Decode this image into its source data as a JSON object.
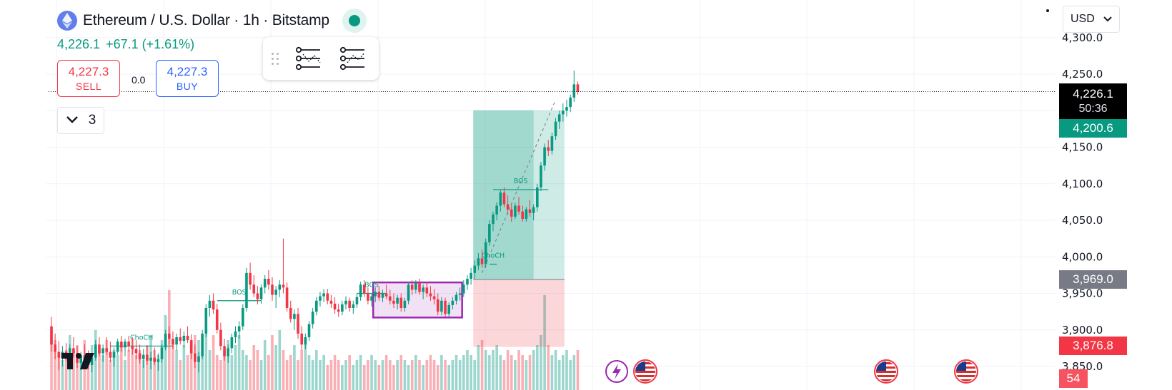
{
  "header": {
    "title": "Ethereum / U.S. Dollar · 1h · Bitstamp",
    "price": "4,226.1",
    "change": "+67.1 (+1.61%)",
    "colors": {
      "up": "#089981",
      "down": "#f23645",
      "accent": "#2962ff"
    }
  },
  "trade": {
    "sell_price": "4,227.3",
    "sell_label": "SELL",
    "spread": "0.0",
    "buy_price": "4,227.3",
    "buy_label": "BUY"
  },
  "indicators": {
    "count": "3"
  },
  "currency": {
    "selected": "USD"
  },
  "axis_tags": {
    "current_price": "4,226.1",
    "countdown": "50:36",
    "target": "4,200.6",
    "entry": "3,969.0",
    "stop": "3,876.8",
    "volume": "54"
  },
  "icons": [
    "ethereum-icon",
    "market-open-icon",
    "drag-handle-icon",
    "indicator-settings-icon",
    "indicator-settings-alt-icon",
    "chevron-down-icon",
    "tradingview-logo",
    "lightning-event-icon",
    "us-flag-icon"
  ],
  "chart_data": {
    "type": "candlestick",
    "title": "Ethereum / U.S. Dollar · 1h · Bitstamp",
    "ylim": [
      3850,
      4300
    ],
    "y_ticks": [
      "3,850.0",
      "3,900.0",
      "3,950.0",
      "4,000.0",
      "4,050.0",
      "4,100.0",
      "4,150.0",
      "4,200.0",
      "4,250.0",
      "4,300.0"
    ],
    "y_tick_values": [
      3850,
      3900,
      3950,
      4000,
      4050,
      4100,
      4150,
      4200,
      4250,
      4300
    ],
    "last_price": 4226.1,
    "candles": [
      [
        3905,
        3918,
        3870,
        3880
      ],
      [
        3880,
        3895,
        3860,
        3870
      ],
      [
        3870,
        3885,
        3845,
        3862
      ],
      [
        3862,
        3878,
        3850,
        3870
      ],
      [
        3870,
        3882,
        3858,
        3865
      ],
      [
        3865,
        3880,
        3852,
        3875
      ],
      [
        3875,
        3890,
        3862,
        3868
      ],
      [
        3868,
        3878,
        3848,
        3855
      ],
      [
        3855,
        3870,
        3845,
        3865
      ],
      [
        3865,
        3880,
        3856,
        3860
      ],
      [
        3860,
        3872,
        3846,
        3852
      ],
      [
        3852,
        3868,
        3842,
        3862
      ],
      [
        3862,
        3886,
        3858,
        3880
      ],
      [
        3880,
        3890,
        3864,
        3868
      ],
      [
        3868,
        3880,
        3856,
        3875
      ],
      [
        3875,
        3890,
        3866,
        3870
      ],
      [
        3870,
        3884,
        3856,
        3862
      ],
      [
        3862,
        3876,
        3850,
        3870
      ],
      [
        3870,
        3888,
        3866,
        3884
      ],
      [
        3884,
        3892,
        3870,
        3876
      ],
      [
        3876,
        3888,
        3864,
        3884
      ],
      [
        3884,
        3892,
        3870,
        3878
      ],
      [
        3878,
        3890,
        3866,
        3874
      ],
      [
        3874,
        3886,
        3860,
        3868
      ],
      [
        3868,
        3880,
        3854,
        3860
      ],
      [
        3860,
        3874,
        3848,
        3866
      ],
      [
        3866,
        3878,
        3852,
        3858
      ],
      [
        3858,
        3870,
        3846,
        3862
      ],
      [
        3862,
        3876,
        3852,
        3856
      ],
      [
        3856,
        3868,
        3844,
        3860
      ],
      [
        3860,
        3880,
        3855,
        3876
      ],
      [
        3876,
        3900,
        3872,
        3895
      ],
      [
        3895,
        3905,
        3880,
        3888
      ],
      [
        3888,
        3898,
        3874,
        3880
      ],
      [
        3880,
        3895,
        3872,
        3890
      ],
      [
        3890,
        3902,
        3880,
        3885
      ],
      [
        3885,
        3898,
        3876,
        3892
      ],
      [
        3892,
        3905,
        3882,
        3886
      ],
      [
        3886,
        3894,
        3860,
        3868
      ],
      [
        3868,
        3880,
        3848,
        3856
      ],
      [
        3856,
        3870,
        3842,
        3864
      ],
      [
        3864,
        3900,
        3860,
        3895
      ],
      [
        3895,
        3935,
        3890,
        3930
      ],
      [
        3930,
        3948,
        3918,
        3940
      ],
      [
        3940,
        3950,
        3922,
        3928
      ],
      [
        3928,
        3936,
        3895,
        3900
      ],
      [
        3900,
        3910,
        3872,
        3878
      ],
      [
        3878,
        3888,
        3858,
        3864
      ],
      [
        3864,
        3880,
        3855,
        3875
      ],
      [
        3875,
        3895,
        3868,
        3890
      ],
      [
        3890,
        3905,
        3882,
        3898
      ],
      [
        3898,
        3912,
        3888,
        3905
      ],
      [
        3905,
        3935,
        3900,
        3930
      ],
      [
        3930,
        3985,
        3925,
        3978
      ],
      [
        3978,
        3992,
        3955,
        3962
      ],
      [
        3962,
        3975,
        3945,
        3950
      ],
      [
        3950,
        3960,
        3935,
        3942
      ],
      [
        3942,
        3962,
        3936,
        3958
      ],
      [
        3958,
        3975,
        3950,
        3970
      ],
      [
        3970,
        3982,
        3955,
        3962
      ],
      [
        3962,
        3972,
        3940,
        3948
      ],
      [
        3948,
        3960,
        3930,
        3955
      ],
      [
        3955,
        3968,
        3945,
        3962
      ],
      [
        3962,
        4025,
        3950,
        3958
      ],
      [
        3958,
        3965,
        3925,
        3930
      ],
      [
        3930,
        3940,
        3910,
        3915
      ],
      [
        3915,
        3928,
        3900,
        3922
      ],
      [
        3922,
        3930,
        3888,
        3895
      ],
      [
        3895,
        3905,
        3872,
        3880
      ],
      [
        3880,
        3895,
        3874,
        3890
      ],
      [
        3890,
        3912,
        3885,
        3908
      ],
      [
        3908,
        3930,
        3902,
        3925
      ],
      [
        3925,
        3945,
        3920,
        3940
      ],
      [
        3940,
        3952,
        3932,
        3946
      ],
      [
        3946,
        3956,
        3938,
        3950
      ],
      [
        3950,
        3956,
        3935,
        3940
      ],
      [
        3940,
        3948,
        3930,
        3936
      ],
      [
        3936,
        3945,
        3922,
        3928
      ],
      [
        3928,
        3936,
        3918,
        3925
      ],
      [
        3925,
        3940,
        3920,
        3935
      ],
      [
        3935,
        3946,
        3928,
        3940
      ],
      [
        3940,
        3944,
        3925,
        3930
      ],
      [
        3930,
        3940,
        3922,
        3935
      ],
      [
        3935,
        3950,
        3930,
        3945
      ],
      [
        3945,
        3966,
        3940,
        3962
      ],
      [
        3962,
        3968,
        3945,
        3950
      ],
      [
        3950,
        3958,
        3935,
        3940
      ],
      [
        3940,
        3950,
        3932,
        3946
      ],
      [
        3946,
        3958,
        3938,
        3952
      ],
      [
        3952,
        3960,
        3940,
        3944
      ],
      [
        3944,
        3955,
        3938,
        3950
      ],
      [
        3950,
        3962,
        3942,
        3946
      ],
      [
        3946,
        3955,
        3935,
        3940
      ],
      [
        3940,
        3950,
        3930,
        3936
      ],
      [
        3936,
        3948,
        3928,
        3944
      ],
      [
        3944,
        3950,
        3925,
        3930
      ],
      [
        3930,
        3944,
        3925,
        3940
      ],
      [
        3940,
        3966,
        3935,
        3962
      ],
      [
        3962,
        3968,
        3948,
        3955
      ],
      [
        3955,
        3968,
        3950,
        3964
      ],
      [
        3964,
        3970,
        3948,
        3952
      ],
      [
        3952,
        3962,
        3942,
        3958
      ],
      [
        3958,
        3966,
        3945,
        3950
      ],
      [
        3950,
        3960,
        3940,
        3946
      ],
      [
        3946,
        3956,
        3935,
        3942
      ],
      [
        3942,
        3950,
        3920,
        3925
      ],
      [
        3925,
        3945,
        3920,
        3940
      ],
      [
        3940,
        3944,
        3918,
        3922
      ],
      [
        3922,
        3938,
        3918,
        3934
      ],
      [
        3934,
        3945,
        3928,
        3940
      ],
      [
        3940,
        3952,
        3935,
        3948
      ],
      [
        3948,
        3958,
        3940,
        3950
      ],
      [
        3950,
        3968,
        3945,
        3962
      ],
      [
        3962,
        3975,
        3955,
        3970
      ],
      [
        3970,
        3985,
        3962,
        3978
      ],
      [
        3978,
        3995,
        3970,
        3988
      ],
      [
        3988,
        4005,
        3982,
        3998
      ],
      [
        3998,
        4010,
        3985,
        3990
      ],
      [
        3990,
        4025,
        3985,
        4020
      ],
      [
        4020,
        4050,
        4015,
        4045
      ],
      [
        4045,
        4062,
        4035,
        4058
      ],
      [
        4058,
        4075,
        4050,
        4070
      ],
      [
        4070,
        4092,
        4062,
        4088
      ],
      [
        4088,
        4095,
        4068,
        4072
      ],
      [
        4072,
        4084,
        4058,
        4065
      ],
      [
        4065,
        4072,
        4048,
        4055
      ],
      [
        4055,
        4074,
        4052,
        4070
      ],
      [
        4070,
        4082,
        4058,
        4062
      ],
      [
        4062,
        4070,
        4048,
        4052
      ],
      [
        4052,
        4068,
        4048,
        4065
      ],
      [
        4065,
        4078,
        4055,
        4060
      ],
      [
        4060,
        4072,
        4050,
        4068
      ],
      [
        4068,
        4100,
        4062,
        4095
      ],
      [
        4095,
        4130,
        4090,
        4125
      ],
      [
        4125,
        4155,
        4118,
        4150
      ],
      [
        4150,
        4160,
        4138,
        4145
      ],
      [
        4145,
        4170,
        4140,
        4165
      ],
      [
        4165,
        4190,
        4160,
        4185
      ],
      [
        4185,
        4200,
        4175,
        4195
      ],
      [
        4195,
        4210,
        4185,
        4200
      ],
      [
        4200,
        4215,
        4192,
        4205
      ],
      [
        4205,
        4222,
        4198,
        4218
      ],
      [
        4218,
        4255,
        4212,
        4236
      ],
      [
        4236,
        4240,
        4222,
        4226
      ]
    ],
    "volumes": [
      0.6,
      0.5,
      0.35,
      0.3,
      0.4,
      0.55,
      0.4,
      0.45,
      0.35,
      0.5,
      0.3,
      0.45,
      0.6,
      0.4,
      0.35,
      0.5,
      0.3,
      0.4,
      0.35,
      0.45,
      0.3,
      0.4,
      0.5,
      0.35,
      0.4,
      0.3,
      0.45,
      0.55,
      0.4,
      0.35,
      0.5,
      0.75,
      1.0,
      0.5,
      0.4,
      0.3,
      0.45,
      0.35,
      0.4,
      0.55,
      0.5,
      0.45,
      0.6,
      0.4,
      0.55,
      0.35,
      0.3,
      0.4,
      0.5,
      0.35,
      0.45,
      0.55,
      0.4,
      0.35,
      0.3,
      0.45,
      0.4,
      0.3,
      0.5,
      0.35,
      0.55,
      0.45,
      0.6,
      0.4,
      0.3,
      0.35,
      0.45,
      0.3,
      0.4,
      0.5,
      0.35,
      0.3,
      0.4,
      0.3,
      0.35,
      0.25,
      0.3,
      0.35,
      0.3,
      0.25,
      0.3,
      0.35,
      0.25,
      0.3,
      0.35,
      0.25,
      0.3,
      0.35,
      0.3,
      0.25,
      0.3,
      0.35,
      0.3,
      0.25,
      0.3,
      0.35,
      0.3,
      0.25,
      0.3,
      0.35,
      0.3,
      0.25,
      0.3,
      0.35,
      0.3,
      0.25,
      0.35,
      0.3,
      0.25,
      0.3,
      0.35,
      0.3,
      0.35,
      0.4,
      0.35,
      0.3,
      0.45,
      0.5,
      0.4,
      0.35,
      0.4,
      0.45,
      0.35,
      0.3,
      0.4,
      0.35,
      0.3,
      0.4,
      0.35,
      0.3,
      0.35,
      0.4,
      0.45,
      0.55,
      0.95,
      0.45,
      0.35,
      0.4,
      0.3,
      0.35,
      0.4,
      0.3,
      0.35,
      0.4
    ],
    "annotations": [
      {
        "text": "ChoCH",
        "from": 16,
        "to": 33,
        "price": 3878
      },
      {
        "text": "BOS",
        "from": 45,
        "to": 57,
        "price": 3940
      },
      {
        "text": "BOS",
        "from": 83,
        "to": 91,
        "price": 3950
      },
      {
        "text": "ChoCH",
        "from": 119,
        "to": 121,
        "price": 3990
      },
      {
        "text": "BOS",
        "from": 120,
        "to": 135,
        "price": 4092
      }
    ],
    "range_box": {
      "from": 88,
      "to": 111,
      "price_high": 3965,
      "price_low": 3917
    },
    "long_position": {
      "from": 115,
      "to": 139,
      "entry": 3969.0,
      "target": 4200.6,
      "stop": 3876.8,
      "fill_until": 131
    }
  }
}
